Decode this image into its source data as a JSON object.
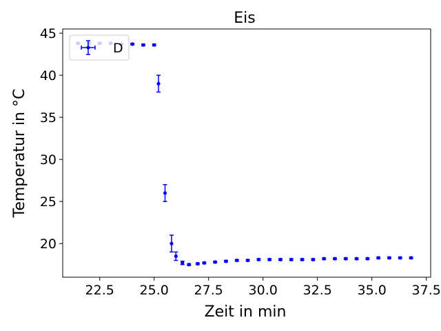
{
  "chart_data": {
    "type": "scatter",
    "title": "Eis",
    "xlabel": "Zeit in min",
    "ylabel": "Temperatur in °C",
    "xlim": [
      20.8,
      37.7
    ],
    "ylim": [
      16.0,
      45.5
    ],
    "xticks": [
      "22.5",
      "25.0",
      "27.5",
      "30.0",
      "32.5",
      "35.0",
      "37.5"
    ],
    "yticks": [
      "20",
      "25",
      "30",
      "35",
      "40",
      "45"
    ],
    "legend": {
      "position": "upper-left",
      "entries": [
        "D"
      ]
    },
    "grid": false,
    "series": [
      {
        "name": "D",
        "color": "#0000ff",
        "marker": "circle",
        "error_bars": "y",
        "points": [
          {
            "x": 21.5,
            "y": 43.8,
            "yerr": 0.1
          },
          {
            "x": 22.0,
            "y": 43.8,
            "yerr": 0.1
          },
          {
            "x": 22.5,
            "y": 43.8,
            "yerr": 0.1
          },
          {
            "x": 23.0,
            "y": 43.8,
            "yerr": 0.1
          },
          {
            "x": 23.5,
            "y": 43.7,
            "yerr": 0.1
          },
          {
            "x": 24.0,
            "y": 43.7,
            "yerr": 0.1
          },
          {
            "x": 24.5,
            "y": 43.6,
            "yerr": 0.1
          },
          {
            "x": 25.0,
            "y": 43.6,
            "yerr": 0.1
          },
          {
            "x": 25.2,
            "y": 39.0,
            "yerr": 1.0
          },
          {
            "x": 25.5,
            "y": 26.0,
            "yerr": 1.0
          },
          {
            "x": 25.8,
            "y": 20.0,
            "yerr": 1.0
          },
          {
            "x": 26.0,
            "y": 18.5,
            "yerr": 0.5
          },
          {
            "x": 26.3,
            "y": 17.7,
            "yerr": 0.2
          },
          {
            "x": 26.6,
            "y": 17.5,
            "yerr": 0.1
          },
          {
            "x": 27.0,
            "y": 17.6,
            "yerr": 0.1
          },
          {
            "x": 27.3,
            "y": 17.7,
            "yerr": 0.1
          },
          {
            "x": 27.8,
            "y": 17.8,
            "yerr": 0.1
          },
          {
            "x": 28.3,
            "y": 17.9,
            "yerr": 0.1
          },
          {
            "x": 28.8,
            "y": 18.0,
            "yerr": 0.1
          },
          {
            "x": 29.3,
            "y": 18.0,
            "yerr": 0.1
          },
          {
            "x": 29.8,
            "y": 18.1,
            "yerr": 0.1
          },
          {
            "x": 30.3,
            "y": 18.1,
            "yerr": 0.1
          },
          {
            "x": 30.8,
            "y": 18.1,
            "yerr": 0.1
          },
          {
            "x": 31.3,
            "y": 18.1,
            "yerr": 0.1
          },
          {
            "x": 31.8,
            "y": 18.1,
            "yerr": 0.1
          },
          {
            "x": 32.3,
            "y": 18.1,
            "yerr": 0.1
          },
          {
            "x": 32.8,
            "y": 18.2,
            "yerr": 0.1
          },
          {
            "x": 33.3,
            "y": 18.2,
            "yerr": 0.1
          },
          {
            "x": 33.8,
            "y": 18.2,
            "yerr": 0.1
          },
          {
            "x": 34.3,
            "y": 18.2,
            "yerr": 0.1
          },
          {
            "x": 34.8,
            "y": 18.2,
            "yerr": 0.1
          },
          {
            "x": 35.3,
            "y": 18.3,
            "yerr": 0.1
          },
          {
            "x": 35.8,
            "y": 18.3,
            "yerr": 0.1
          },
          {
            "x": 36.3,
            "y": 18.3,
            "yerr": 0.1
          },
          {
            "x": 36.8,
            "y": 18.3,
            "yerr": 0.1
          }
        ]
      }
    ]
  }
}
